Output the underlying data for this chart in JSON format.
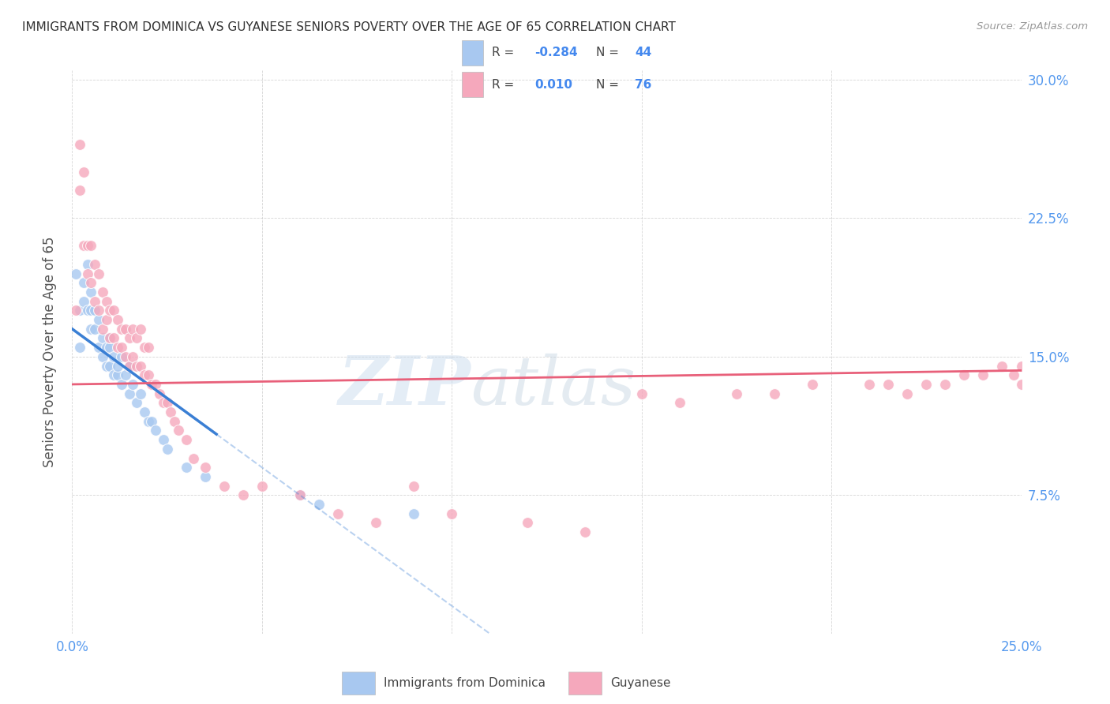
{
  "title": "IMMIGRANTS FROM DOMINICA VS GUYANESE SENIORS POVERTY OVER THE AGE OF 65 CORRELATION CHART",
  "source": "Source: ZipAtlas.com",
  "ylabel": "Seniors Poverty Over the Age of 65",
  "xlim": [
    0.0,
    0.25
  ],
  "ylim": [
    0.0,
    0.305
  ],
  "xticks": [
    0.0,
    0.05,
    0.1,
    0.15,
    0.2,
    0.25
  ],
  "yticks": [
    0.0,
    0.075,
    0.15,
    0.225,
    0.3
  ],
  "blue_color": "#A8C8F0",
  "pink_color": "#F5A8BC",
  "blue_line_color": "#3A7FD4",
  "pink_line_color": "#E8607A",
  "watermark_line1": "ZIP",
  "watermark_line2": "atlas",
  "r_blue": "-0.284",
  "n_blue": "44",
  "r_pink": "0.010",
  "n_pink": "76",
  "label_blue": "Immigrants from Dominica",
  "label_pink": "Guyanese",
  "blue_x": [
    0.001,
    0.002,
    0.002,
    0.003,
    0.003,
    0.004,
    0.004,
    0.005,
    0.005,
    0.005,
    0.006,
    0.006,
    0.007,
    0.007,
    0.008,
    0.008,
    0.009,
    0.009,
    0.01,
    0.01,
    0.01,
    0.011,
    0.011,
    0.012,
    0.012,
    0.013,
    0.013,
    0.014,
    0.015,
    0.015,
    0.016,
    0.017,
    0.018,
    0.019,
    0.02,
    0.021,
    0.022,
    0.024,
    0.025,
    0.03,
    0.035,
    0.06,
    0.065,
    0.09
  ],
  "blue_y": [
    0.195,
    0.155,
    0.175,
    0.19,
    0.18,
    0.2,
    0.175,
    0.165,
    0.175,
    0.185,
    0.175,
    0.165,
    0.17,
    0.155,
    0.16,
    0.15,
    0.155,
    0.145,
    0.155,
    0.145,
    0.16,
    0.14,
    0.15,
    0.14,
    0.145,
    0.135,
    0.15,
    0.14,
    0.13,
    0.145,
    0.135,
    0.125,
    0.13,
    0.12,
    0.115,
    0.115,
    0.11,
    0.105,
    0.1,
    0.09,
    0.085,
    0.075,
    0.07,
    0.065
  ],
  "pink_x": [
    0.001,
    0.002,
    0.002,
    0.003,
    0.003,
    0.004,
    0.004,
    0.005,
    0.005,
    0.006,
    0.006,
    0.007,
    0.007,
    0.008,
    0.008,
    0.009,
    0.009,
    0.01,
    0.01,
    0.011,
    0.011,
    0.012,
    0.012,
    0.013,
    0.013,
    0.014,
    0.014,
    0.015,
    0.015,
    0.016,
    0.016,
    0.017,
    0.017,
    0.018,
    0.018,
    0.019,
    0.019,
    0.02,
    0.02,
    0.021,
    0.022,
    0.023,
    0.024,
    0.025,
    0.026,
    0.027,
    0.028,
    0.03,
    0.032,
    0.035,
    0.04,
    0.045,
    0.05,
    0.06,
    0.07,
    0.08,
    0.09,
    0.1,
    0.12,
    0.135,
    0.15,
    0.16,
    0.175,
    0.185,
    0.195,
    0.21,
    0.215,
    0.22,
    0.225,
    0.23,
    0.235,
    0.24,
    0.245,
    0.248,
    0.25,
    0.25
  ],
  "pink_y": [
    0.175,
    0.24,
    0.265,
    0.21,
    0.25,
    0.21,
    0.195,
    0.19,
    0.21,
    0.2,
    0.18,
    0.175,
    0.195,
    0.165,
    0.185,
    0.17,
    0.18,
    0.16,
    0.175,
    0.16,
    0.175,
    0.155,
    0.17,
    0.155,
    0.165,
    0.15,
    0.165,
    0.145,
    0.16,
    0.15,
    0.165,
    0.145,
    0.16,
    0.145,
    0.165,
    0.14,
    0.155,
    0.14,
    0.155,
    0.135,
    0.135,
    0.13,
    0.125,
    0.125,
    0.12,
    0.115,
    0.11,
    0.105,
    0.095,
    0.09,
    0.08,
    0.075,
    0.08,
    0.075,
    0.065,
    0.06,
    0.08,
    0.065,
    0.06,
    0.055,
    0.13,
    0.125,
    0.13,
    0.13,
    0.135,
    0.135,
    0.135,
    0.13,
    0.135,
    0.135,
    0.14,
    0.14,
    0.145,
    0.14,
    0.145,
    0.135
  ]
}
